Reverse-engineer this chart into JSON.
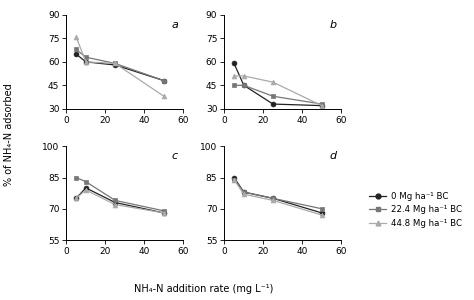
{
  "x": [
    5,
    10,
    25,
    50
  ],
  "panels": [
    "a",
    "b",
    "c",
    "d"
  ],
  "series_labels": [
    "0 Mg ha⁻¹ BC",
    "22.4 Mg ha⁻¹ BC",
    "44.8 Mg ha⁻¹ BC"
  ],
  "series_colors": [
    "#222222",
    "#777777",
    "#aaaaaa"
  ],
  "series_markers": [
    "o",
    "s",
    "^"
  ],
  "data": {
    "a": {
      "s0": [
        65,
        60,
        58,
        48
      ],
      "s1": [
        68,
        63,
        59,
        48
      ],
      "s2": [
        76,
        60,
        59,
        38
      ]
    },
    "b": {
      "s0": [
        59,
        45,
        33,
        32
      ],
      "s1": [
        45,
        45,
        38,
        33
      ],
      "s2": [
        51,
        51,
        47,
        32
      ]
    },
    "c": {
      "s0": [
        75,
        80,
        73,
        68
      ],
      "s1": [
        85,
        83,
        74,
        69
      ],
      "s2": [
        75,
        79,
        72,
        68
      ]
    },
    "d": {
      "s0": [
        85,
        78,
        75,
        68
      ],
      "s1": [
        84,
        78,
        75,
        70
      ],
      "s2": [
        84,
        77,
        74,
        67
      ]
    }
  },
  "ylims": {
    "a": [
      30,
      90
    ],
    "b": [
      30,
      90
    ],
    "c": [
      55,
      100
    ],
    "d": [
      55,
      100
    ]
  },
  "yticks": {
    "a": [
      30,
      45,
      60,
      75,
      90
    ],
    "b": [
      30,
      45,
      60,
      75,
      90
    ],
    "c": [
      55,
      70,
      85,
      100
    ],
    "d": [
      55,
      70,
      85,
      100
    ]
  },
  "xlabel": "NH₄-N addition rate (mg L⁻¹)",
  "ylabel": "% of NH₄-N adsorbed",
  "xlim": [
    0,
    60
  ],
  "xticks": [
    0,
    20,
    40,
    60
  ],
  "legend_labels": [
    "0 Mg ha⁻¹ BC",
    "22.4 Mg ha⁻¹ BC",
    "44.8 Mg ha⁻¹ BC"
  ]
}
